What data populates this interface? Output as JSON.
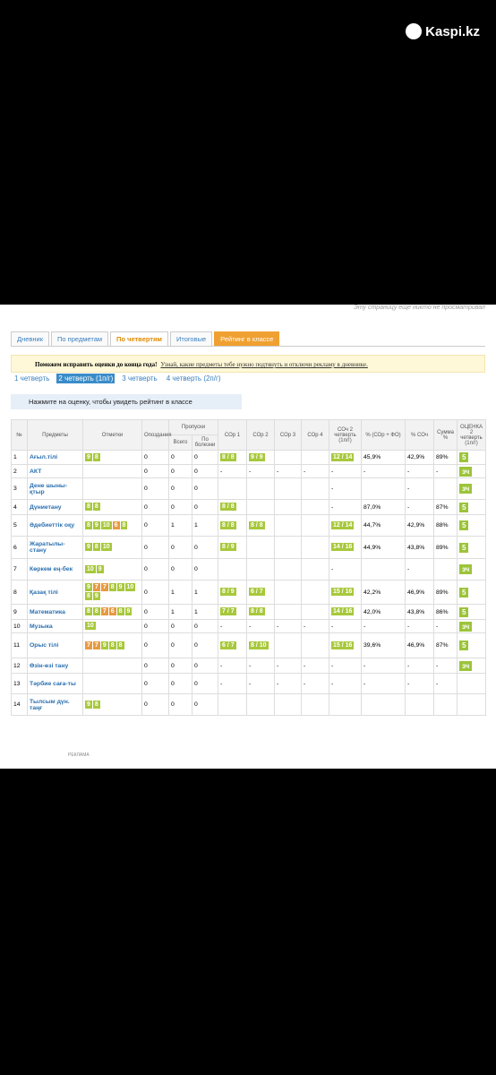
{
  "watermark": "Kaspi.kz",
  "notice": "Эту страницу еще никто не просматривал",
  "tabs": [
    "Дневник",
    "По предметам",
    "По четвертям",
    "Итоговые",
    "Рейтинг в классе"
  ],
  "banner": {
    "title": "Поможем исправить оценки до конца года!",
    "link": "Узнай, какие предметы тебе нужно подтянуть и отключи рекламу в дневнике."
  },
  "quarters": [
    "1 четверть",
    "2 четверть (1п/г)",
    "3 четверть",
    "4 четверть (2п/г)"
  ],
  "hint": "Нажмите на оценку, чтобы увидеть рейтинг в классе",
  "table": {
    "headers": [
      "№",
      "Предметы",
      "Отметки",
      "Опоздания",
      "Пропуски",
      "Всего",
      "По болезни",
      "СОр 1",
      "СОр 2",
      "СОр 3",
      "СОр 4",
      "СОч 2 четверть (1п/г)",
      "% (СОр + ФО)",
      "% СОч",
      "Сумма %",
      "ОЦЕНКА 2 четверть (1п/г)"
    ],
    "rows": [
      [
        1,
        "Ағыл.тілі",
        [
          9,
          8
        ],
        0,
        0,
        0,
        "8 / 8",
        "9 / 9",
        null,
        null,
        "12 / 14",
        "45,9%",
        "42,9%",
        "89%",
        "5"
      ],
      [
        2,
        "АКТ",
        null,
        0,
        0,
        0,
        "-",
        "-",
        "-",
        "-",
        "-",
        "-",
        "-",
        "-",
        "зч"
      ],
      [
        3,
        "Дене шыны-қтыр",
        null,
        0,
        0,
        0,
        null,
        null,
        null,
        null,
        "-",
        null,
        "-",
        null,
        "зч"
      ],
      [
        4,
        "Дүниетану",
        [
          8,
          8
        ],
        0,
        0,
        0,
        "8 / 8",
        null,
        null,
        null,
        "-",
        "87,0%",
        "-",
        "87%",
        "5"
      ],
      [
        5,
        "Әдебиеттік оқу",
        [
          8,
          9,
          10,
          6,
          8
        ],
        0,
        1,
        1,
        "8 / 8",
        "8 / 8",
        null,
        null,
        "12 / 14",
        "44,7%",
        "42,9%",
        "88%",
        "5"
      ],
      [
        6,
        "Жаратылы-стану",
        [
          9,
          8,
          10
        ],
        0,
        0,
        0,
        "8 / 9",
        null,
        null,
        null,
        "14 / 16",
        "44,9%",
        "43,8%",
        "89%",
        "5"
      ],
      [
        7,
        "Көркем ең-бек",
        [
          10,
          9
        ],
        0,
        0,
        0,
        null,
        null,
        null,
        null,
        "-",
        null,
        "-",
        null,
        "зч"
      ],
      [
        8,
        "Қазақ тілі",
        [
          9,
          7,
          7,
          8,
          9,
          10,
          8,
          9
        ],
        0,
        1,
        1,
        "8 / 9",
        "6 / 7",
        null,
        null,
        "15 / 16",
        "42,2%",
        "46,9%",
        "89%",
        "5"
      ],
      [
        9,
        "Математика",
        [
          8,
          8,
          7,
          6,
          8,
          9
        ],
        0,
        1,
        1,
        "7 / 7",
        "8 / 8",
        null,
        null,
        "14 / 16",
        "42,0%",
        "43,8%",
        "86%",
        "5"
      ],
      [
        10,
        "Музыка",
        [
          10
        ],
        0,
        0,
        0,
        "-",
        "-",
        "-",
        "-",
        "-",
        "-",
        "-",
        "-",
        "зч"
      ],
      [
        11,
        "Орыс тілі",
        [
          7,
          7,
          9,
          8,
          8
        ],
        0,
        0,
        0,
        "6 / 7",
        "8 / 10",
        null,
        null,
        "15 / 16",
        "39,6%",
        "46,9%",
        "87%",
        "5"
      ],
      [
        12,
        "Өзін-өзі тану",
        null,
        0,
        0,
        0,
        "-",
        "-",
        "-",
        "-",
        "-",
        "-",
        "-",
        "-",
        "зч"
      ],
      [
        13,
        "Тәрбие сағa-ты",
        null,
        0,
        0,
        0,
        "-",
        "-",
        "-",
        "-",
        "-",
        "-",
        "-",
        "-",
        null
      ],
      [
        14,
        "Тылсым дүн. таңғ",
        [
          9,
          8
        ],
        0,
        0,
        0,
        null,
        null,
        null,
        null,
        null,
        null,
        null,
        null,
        null
      ]
    ]
  },
  "ad": "РЕКЛАМА"
}
